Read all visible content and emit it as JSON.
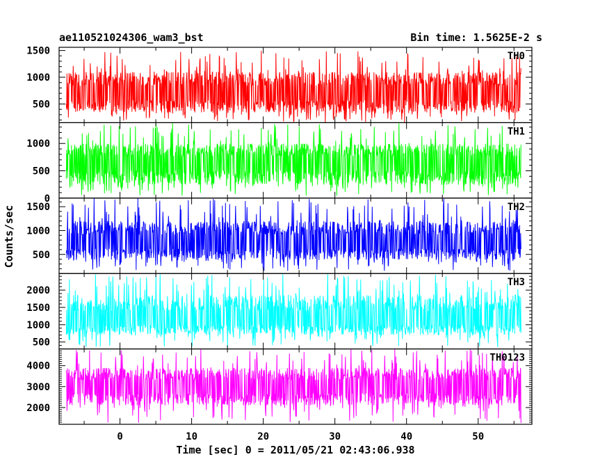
{
  "header": {
    "title": "ae110521024306_wam3_bst",
    "bin_time": "Bin time: 1.5625E-2 s"
  },
  "chart_data": {
    "type": "line",
    "xlabel": "Time [sec] 0 = 2011/05/21 02:43:06.938",
    "ylabel": "Counts/sec",
    "xlim": [
      -8.5,
      57.5
    ],
    "x_range_data": [
      -7.5,
      56
    ],
    "x_ticks": [
      0,
      10,
      20,
      30,
      40,
      50
    ],
    "grid": false,
    "panels": [
      {
        "name": "TH0",
        "color": "#ff0000",
        "ylim": [
          150,
          1560
        ],
        "yticks": [
          500,
          1000,
          1500
        ],
        "band": {
          "low": 150,
          "high": 1500,
          "median": 700,
          "core_low": 330,
          "core_high": 1100
        }
      },
      {
        "name": "TH1",
        "color": "#00ff00",
        "ylim": [
          0,
          1380
        ],
        "yticks": [
          0,
          500,
          1000
        ],
        "band": {
          "low": 40,
          "high": 1380,
          "median": 650,
          "core_low": 240,
          "core_high": 1000
        }
      },
      {
        "name": "TH2",
        "color": "#0000ff",
        "ylim": [
          100,
          1680
        ],
        "yticks": [
          500,
          1000,
          1500
        ],
        "band": {
          "low": 150,
          "high": 1680,
          "median": 750,
          "core_low": 380,
          "core_high": 1200
        }
      },
      {
        "name": "TH3",
        "color": "#00ffff",
        "ylim": [
          300,
          2480
        ],
        "yticks": [
          500,
          1000,
          1500,
          2000
        ],
        "band": {
          "low": 350,
          "high": 2480,
          "median": 1150,
          "core_low": 700,
          "core_high": 1850
        }
      },
      {
        "name": "TH0123",
        "color": "#ff00ff",
        "ylim": [
          1200,
          4800
        ],
        "yticks": [
          2000,
          3000,
          4000
        ],
        "band": {
          "low": 1250,
          "high": 4800,
          "median": 3000,
          "core_low": 2100,
          "core_high": 3900
        }
      }
    ]
  }
}
